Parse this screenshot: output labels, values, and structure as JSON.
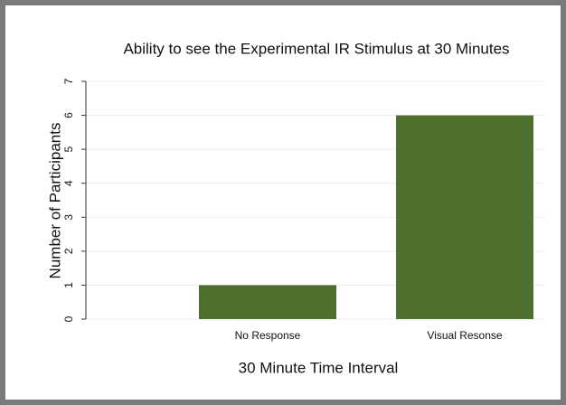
{
  "chart_data": {
    "type": "bar",
    "title": "Ability to see the Experimental IR Stimulus at 30 Minutes",
    "x_label": "30 Minute Time Interval",
    "y_label": "Number of Participants",
    "categories": [
      "No Response",
      "Visual Resonse"
    ],
    "values": [
      1,
      6
    ],
    "color": "#4f6f2e",
    "ylim": [
      0,
      7
    ],
    "yticks": [
      0,
      1,
      2,
      3,
      4,
      5,
      6,
      7
    ],
    "grid": true
  }
}
